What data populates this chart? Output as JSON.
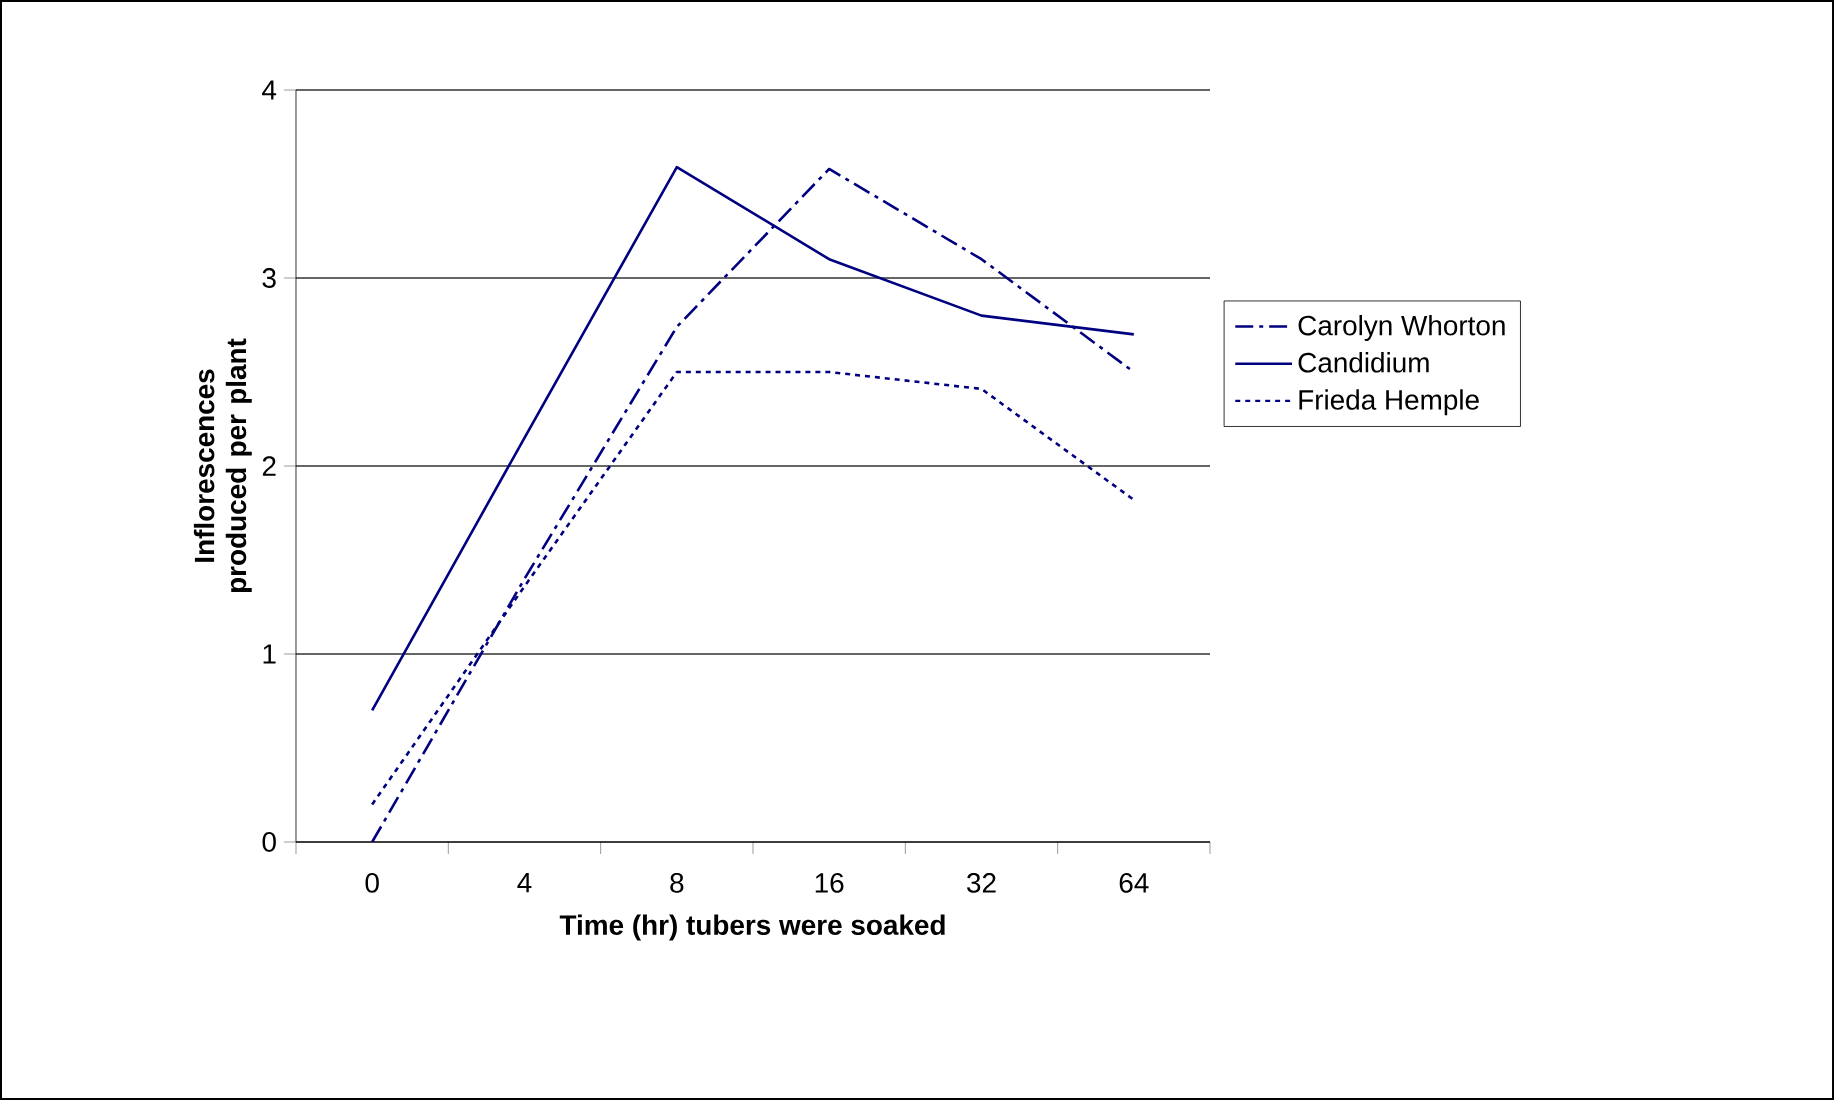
{
  "chart_data": {
    "type": "line",
    "xlabel": "Time (hr) tubers were soaked",
    "ylabel": "Inflorescences produced per plant",
    "categories": [
      "0",
      "4",
      "8",
      "16",
      "32",
      "64"
    ],
    "series": [
      {
        "name": "Carolyn Whorton",
        "color": "#000080",
        "line_style": "dashdot",
        "values": [
          0,
          1.4,
          2.74,
          3.58,
          3.1,
          2.5
        ]
      },
      {
        "name": "Candidium",
        "color": "#000080",
        "line_style": "solid",
        "values": [
          0.7,
          2.15,
          3.59,
          3.1,
          2.8,
          2.7
        ]
      },
      {
        "name": "Frieda Hemple",
        "color": "#000080",
        "line_style": "dotted",
        "values": [
          0.2,
          1.36,
          2.5,
          2.5,
          2.41,
          1.82
        ]
      }
    ],
    "ylim": [
      0,
      4
    ],
    "yticks": [
      0,
      1,
      2,
      3,
      4
    ],
    "grid": "y",
    "legend": "right",
    "marker": "none"
  }
}
